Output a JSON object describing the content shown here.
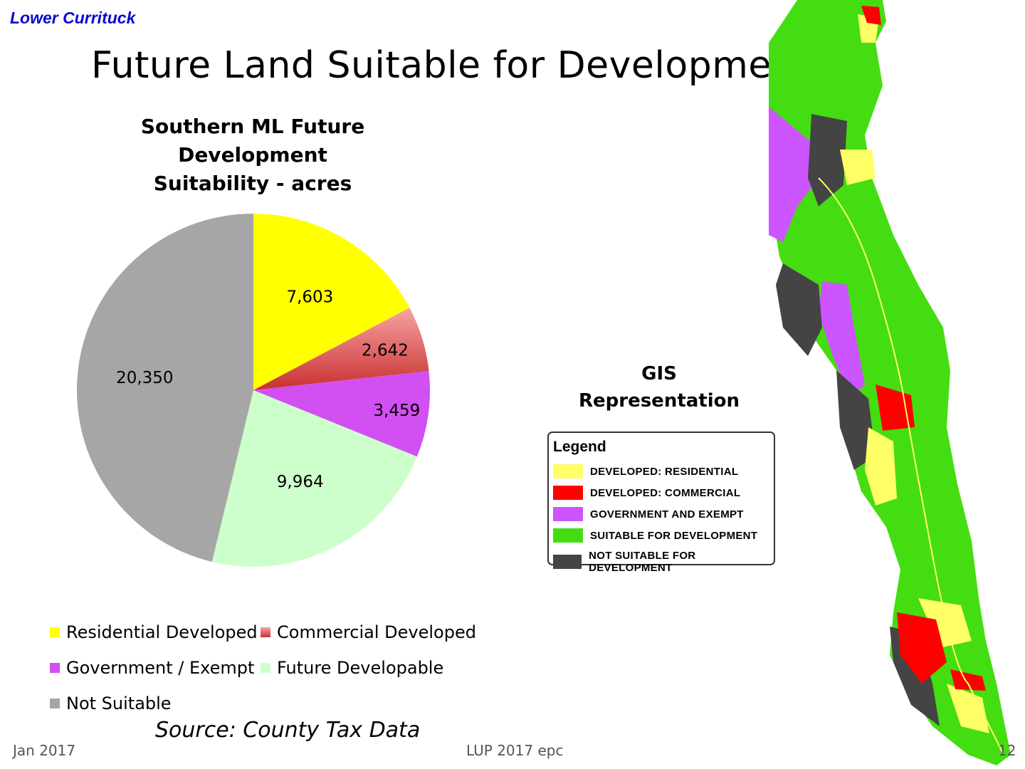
{
  "header": {
    "org_label": "Lower Currituck",
    "title": "Future Land Suitable for Development"
  },
  "chart_data": {
    "type": "pie",
    "title_lines": [
      "Southern ML Future Development",
      "Suitability - acres"
    ],
    "categories": [
      "Residential Developed",
      "Commercial Developed",
      "Government / Exempt",
      "Future Developable",
      "Not Suitable"
    ],
    "values": [
      7603,
      2642,
      3459,
      9964,
      20350
    ],
    "value_labels": [
      "7,603",
      "2,642",
      "3,459",
      "9,964",
      "20,350"
    ],
    "colors": [
      "#ffff00",
      "#e05050",
      "#d24ff2",
      "#ccffcc",
      "#a6a6a6"
    ],
    "legend_placement": "bottom",
    "start": "top, clockwise"
  },
  "source_note": "Source: County Tax Data",
  "gis": {
    "title_lines": [
      "GIS",
      "Representation"
    ],
    "legend_title": "Legend",
    "legend_items": [
      {
        "label": "DEVELOPED: RESIDENTIAL",
        "color": "#ffff66"
      },
      {
        "label": "DEVELOPED: COMMERCIAL",
        "color": "#ff0000"
      },
      {
        "label": "GOVERNMENT AND EXEMPT",
        "color": "#cc55ff"
      },
      {
        "label": "SUITABLE FOR DEVELOPMENT",
        "color": "#44dd11"
      },
      {
        "label": "NOT SUITABLE FOR DEVELOPMENT",
        "color": "#444444"
      }
    ]
  },
  "footer": {
    "date": "Jan 2017",
    "center": "LUP 2017 epc",
    "page_number": "12"
  }
}
